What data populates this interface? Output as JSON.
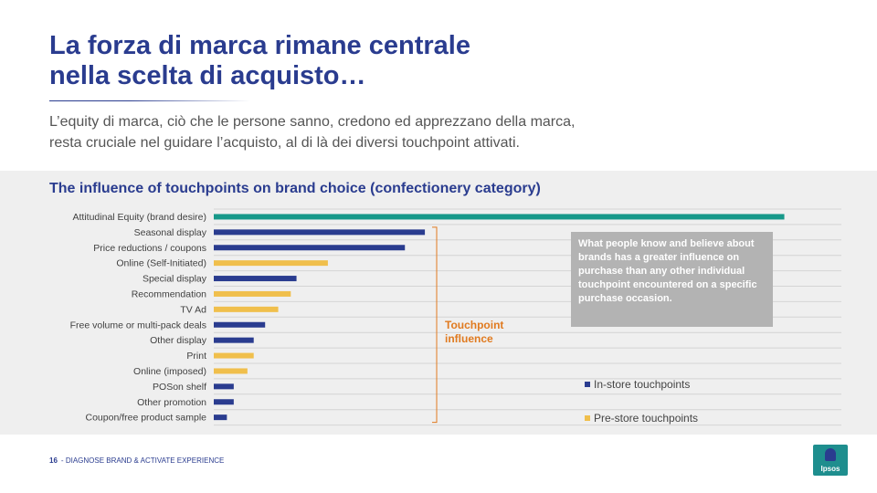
{
  "header": {
    "title_line1": "La forza di marca rimane centrale",
    "title_line2": "nella scelta di acquisto…",
    "subtitle_line1": "L’equity di marca, ciò che le persone sanno, credono  ed apprezzano della marca,",
    "subtitle_line2": "resta cruciale nel guidare l’acquisto, al di là dei diversi touchpoint attivati."
  },
  "chart_data": {
    "type": "bar",
    "orientation": "horizontal",
    "title": "The influence of touchpoints on brand choice (confectionery category)",
    "categories": [
      "Attitudinal Equity (brand desire)",
      "Seasonal display",
      "Price reductions / coupons",
      "Online (Self-Initiated)",
      "Special display",
      "Recommendation",
      "TV Ad",
      "Free volume or multi-pack deals",
      "Other display",
      "Print",
      "Online (imposed)",
      "POSon shelf",
      "Other promotion",
      "Coupon/free product sample"
    ],
    "values": [
      100,
      37,
      33.5,
      20,
      14.5,
      13.5,
      11.3,
      9,
      7,
      7,
      5.9,
      3.5,
      3.5,
      2.3
    ],
    "groups": [
      "equity",
      "in-store",
      "in-store",
      "pre-store",
      "in-store",
      "pre-store",
      "pre-store",
      "in-store",
      "in-store",
      "pre-store",
      "pre-store",
      "in-store",
      "in-store",
      "in-store"
    ],
    "xlim": [
      0,
      110
    ],
    "grid": true,
    "series": [
      {
        "name": "In-store touchpoints",
        "color": "#2a3c8f"
      },
      {
        "name": "Pre-store touchpoints",
        "color": "#f0bf4c"
      }
    ],
    "equity_color": "#17998a",
    "legend_position": "bottom-right"
  },
  "annotations": {
    "callout": "What people know and believe about brands has a greater influence on purchase than any other individual touchpoint encountered on a specific purchase occasion.",
    "bracket_label": "Touchpoint influence",
    "bracket_color": "#e07a1f"
  },
  "footer": {
    "page_number": "16",
    "separator": "-",
    "section": "DIAGNOSE BRAND & ACTIVATE EXPERIENCE"
  },
  "logo": {
    "text": "Ipsos",
    "color": "#1e8e8e"
  }
}
